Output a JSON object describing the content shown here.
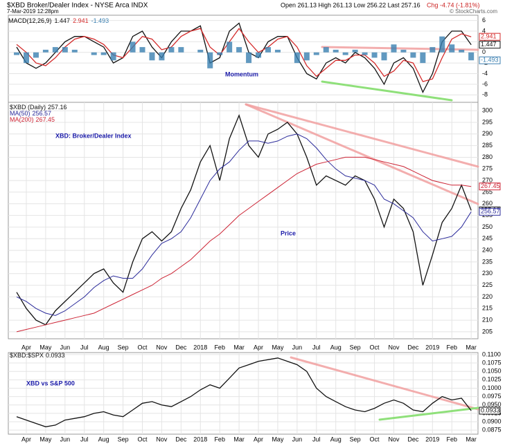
{
  "header": {
    "title": "$XBD Broker/Dealer Index - NYSE Arca INDX",
    "date": "7-Mar-2019 12:28pm",
    "quote": "Open 261.13 High 261.13 Low 256.22 Last 257.16",
    "change": "Chg -4.74 (-1.81%)",
    "credit": "© StockCharts.com"
  },
  "chart_data": [
    {
      "type": "line",
      "legend": "MACD(12,26,9)",
      "annotation": "Momentum",
      "grid": true,
      "ylim": [
        -9.4,
        7
      ],
      "yticks": [
        6,
        4,
        2,
        0,
        -2,
        -4,
        -6,
        -8
      ],
      "series": [
        {
          "color": "#111111",
          "values": [
            1,
            -2,
            -3,
            -2,
            0,
            2,
            3,
            3,
            2,
            1,
            -2,
            -1,
            3,
            4,
            1,
            -1,
            2,
            4,
            4,
            5,
            -2,
            -1,
            4,
            5.5,
            0,
            -1,
            2,
            3,
            3,
            -1,
            -4,
            -5,
            -2,
            -1,
            -2,
            0,
            -1,
            -3,
            -6,
            -2,
            -1,
            -3,
            -7.5,
            -4,
            2,
            4,
            4,
            1.447
          ]
        },
        {
          "color": "#d42a2a",
          "values": [
            1.5,
            0,
            -2,
            -2.5,
            -1,
            1,
            2.5,
            3,
            2.5,
            1.5,
            -0.5,
            -1,
            1,
            3,
            2.5,
            0.5,
            1,
            3,
            4,
            4.5,
            1,
            -0.5,
            2,
            4.5,
            2,
            0,
            1,
            2.5,
            3,
            1,
            -2.5,
            -4.5,
            -3,
            -1.5,
            -1.5,
            -0.5,
            -0.5,
            -2,
            -4.5,
            -3.5,
            -1.5,
            -2,
            -5.5,
            -5,
            -1,
            2.5,
            3.5,
            2.941
          ]
        },
        {
          "type": "bar",
          "color": "#3a7fb0",
          "values": [
            -0.5,
            -2,
            -1,
            0.5,
            1,
            1,
            0.5,
            0,
            -0.5,
            -0.5,
            -1.5,
            0,
            2,
            1,
            -1.5,
            -1.5,
            1,
            1,
            0,
            0.5,
            -3,
            -0.5,
            2,
            1,
            -2,
            -1,
            1,
            0.5,
            0,
            -2,
            -1.5,
            -0.5,
            1,
            0.5,
            -0.5,
            0.5,
            -0.5,
            -1,
            -1.5,
            1.5,
            0.5,
            -1,
            -2,
            1,
            3,
            1.5,
            0.5,
            -1.493
          ]
        }
      ]
    },
    {
      "type": "line",
      "title": "XBD: Broker/Dealer Index",
      "annotation": "Price",
      "grid": true,
      "categories": [
        null,
        "Apr",
        null,
        "May",
        null,
        "Jun",
        null,
        "Jul",
        null,
        "Aug",
        null,
        "Sep",
        null,
        "Oct",
        null,
        "Nov",
        null,
        "Dec",
        null,
        "2018",
        null,
        "Feb",
        null,
        "Mar",
        null,
        "Apr",
        null,
        "May",
        null,
        "Jun",
        null,
        "Jul",
        null,
        "Aug",
        null,
        "Sep",
        null,
        "Oct",
        null,
        "Nov",
        null,
        "Dec",
        null,
        "2019",
        null,
        "Feb",
        null,
        "Mar"
      ],
      "ylim": [
        202,
        303.6
      ],
      "yticks": [
        205,
        210,
        215,
        220,
        225,
        230,
        235,
        240,
        245,
        250,
        255,
        260,
        265,
        270,
        275,
        280,
        285,
        290,
        295,
        300
      ],
      "series": [
        {
          "name": "$XBD (Daily)",
          "color": "#111111",
          "values": [
            222,
            215,
            210,
            208,
            214,
            218,
            222,
            226,
            230,
            232,
            226,
            222,
            235,
            245,
            248,
            244,
            248,
            258,
            266,
            278,
            285,
            270,
            288,
            298,
            285,
            280,
            290,
            292,
            295,
            290,
            280,
            268,
            272,
            270,
            268,
            272,
            270,
            262,
            250,
            262,
            258,
            248,
            225,
            238,
            252,
            258,
            268,
            257.16
          ]
        },
        {
          "name": "MA(50)",
          "color": "#2a2a9a",
          "values": [
            220,
            218,
            215,
            213,
            212,
            214,
            217,
            220,
            224,
            227,
            229,
            228,
            228,
            232,
            238,
            243,
            245,
            248,
            254,
            262,
            270,
            275,
            278,
            283,
            287,
            287,
            286,
            287,
            289,
            290,
            288,
            284,
            279,
            275,
            272,
            271,
            270,
            268,
            262,
            260,
            257,
            254,
            248,
            244,
            245,
            246,
            250,
            256.57
          ]
        },
        {
          "name": "MA(200)",
          "color": "#cc2233",
          "values": [
            205,
            206,
            207,
            208,
            209,
            210,
            211,
            212,
            213,
            215,
            217,
            219,
            221,
            223,
            225,
            228,
            230,
            233,
            236,
            240,
            244,
            247,
            251,
            255,
            258,
            261,
            264,
            267,
            270,
            273,
            275,
            277,
            278,
            279,
            280,
            280,
            280,
            279,
            278,
            277,
            276,
            274,
            272,
            270,
            269,
            268,
            268,
            267.45
          ]
        }
      ]
    },
    {
      "type": "line",
      "annotation": "XBD vs S&P 500",
      "grid": true,
      "categories": [
        null,
        "Apr",
        null,
        "May",
        null,
        "Jun",
        null,
        "Jul",
        null,
        "Aug",
        null,
        "Sep",
        null,
        "Oct",
        null,
        "Nov",
        null,
        "Dec",
        null,
        "2018",
        null,
        "Feb",
        null,
        "Mar",
        null,
        "Apr",
        null,
        "May",
        null,
        "Jun",
        null,
        "Jul",
        null,
        "Aug",
        null,
        "Sep",
        null,
        "Oct",
        null,
        "Nov",
        null,
        "Dec",
        null,
        "2019",
        null,
        "Feb",
        null,
        "Mar"
      ],
      "ylim": [
        0.0863,
        0.1106
      ],
      "yticks": [
        {
          "value": 0.11,
          "label": "0.1100"
        },
        0.1075,
        {
          "value": 0.105,
          "label": "0.1050"
        },
        0.1025,
        {
          "value": 0.1,
          "label": "0.1000"
        },
        0.0975,
        {
          "value": 0.095,
          "label": "0.0950"
        },
        0.0925,
        {
          "value": 0.09,
          "label": "0.0900"
        },
        0.0875
      ],
      "series": [
        {
          "name": "$XBD:$SPX",
          "color": "#111111",
          "values": [
            0.0915,
            0.0905,
            0.0895,
            0.0885,
            0.089,
            0.0905,
            0.091,
            0.0915,
            0.0925,
            0.093,
            0.092,
            0.0915,
            0.0935,
            0.0955,
            0.096,
            0.095,
            0.0945,
            0.096,
            0.0975,
            0.0995,
            0.101,
            0.1,
            0.103,
            0.106,
            0.107,
            0.108,
            0.1085,
            0.109,
            0.108,
            0.107,
            0.105,
            0.1,
            0.0975,
            0.096,
            0.0945,
            0.0935,
            0.093,
            0.094,
            0.0955,
            0.0965,
            0.0955,
            0.0935,
            0.093,
            0.0955,
            0.0975,
            0.0965,
            0.097,
            0.0933
          ]
        }
      ]
    }
  ]
}
